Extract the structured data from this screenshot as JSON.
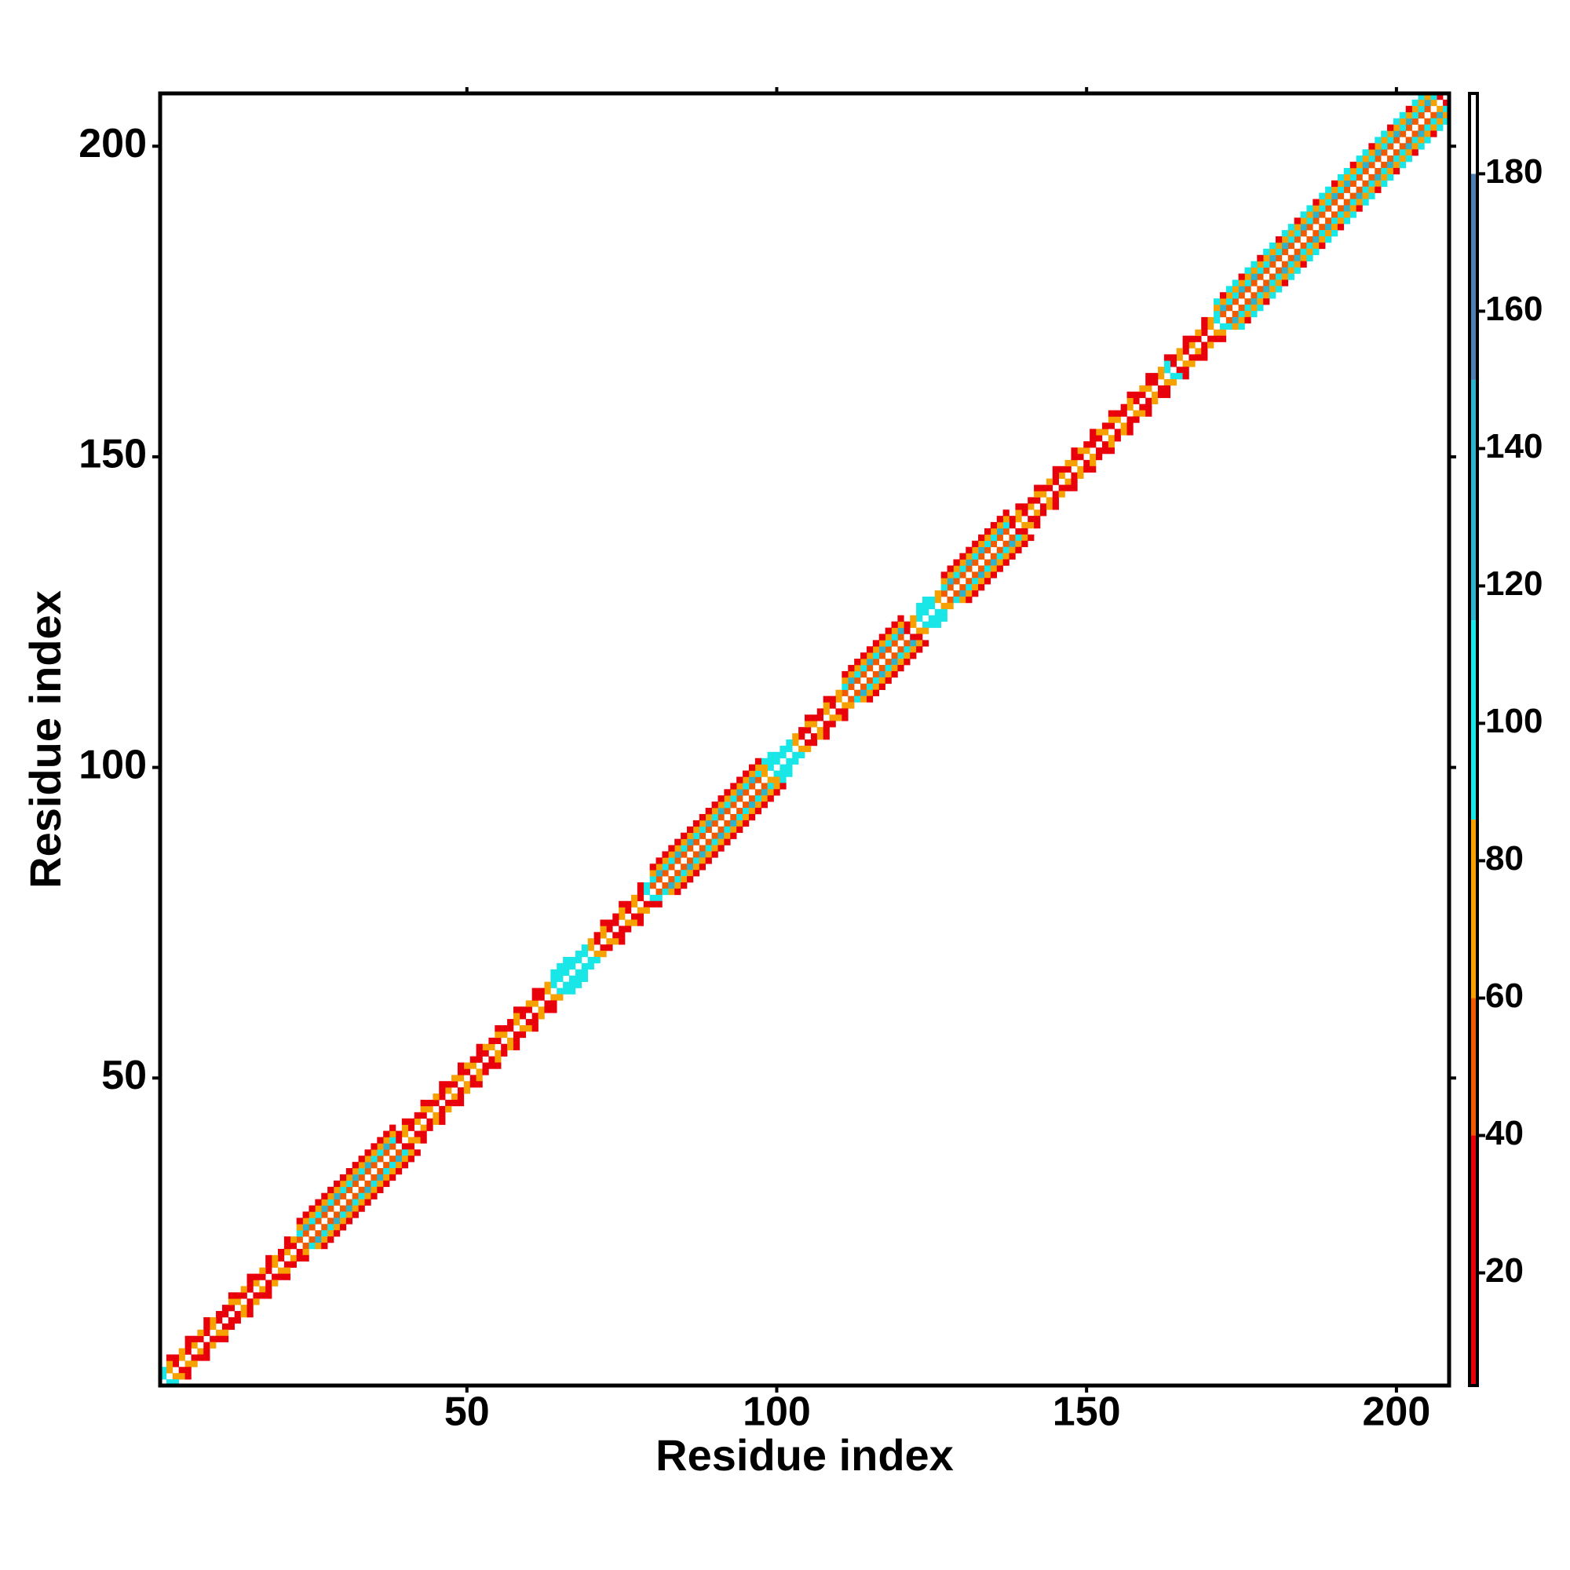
{
  "chart_data": {
    "type": "heatmap",
    "xlabel": "Residue index",
    "ylabel": "Residue index",
    "xlim": [
      0.5,
      208.5
    ],
    "ylim": [
      0.5,
      208.5
    ],
    "xticks": [
      50,
      100,
      150,
      200
    ],
    "yticks": [
      50,
      100,
      150,
      200
    ],
    "clim": [
      3.6,
      191.7
    ],
    "cticks": [
      20,
      40,
      60,
      80,
      100,
      120,
      140,
      160,
      180
    ],
    "colorscale": [
      {
        "max": 40,
        "color": "#e8000b"
      },
      {
        "max": 60,
        "color": "#f05a00"
      },
      {
        "max": 86,
        "color": "#f7a100"
      },
      {
        "max": 115,
        "color": "#19e6e6"
      },
      {
        "max": 150,
        "color": "#2fb3cc"
      },
      {
        "max": 180,
        "color": "#4f7fb0"
      },
      {
        "max": 191.7,
        "color": "#ffffff"
      }
    ],
    "diagonals": [
      {
        "offset": 1,
        "values": [
          95,
          65,
          25,
          70,
          30,
          65,
          20,
          25,
          70,
          30,
          20,
          25,
          65,
          15,
          30,
          70,
          25,
          20,
          65,
          30,
          70,
          25,
          60,
          55,
          50,
          55,
          60,
          55,
          50,
          55,
          60,
          55,
          50,
          55,
          60,
          55,
          50,
          55,
          25,
          65,
          30,
          70,
          20,
          65,
          25,
          30,
          70,
          15,
          65,
          25,
          70,
          30,
          20,
          65,
          25,
          70,
          30,
          65,
          20,
          25,
          70,
          30,
          65,
          100,
          95,
          100,
          105,
          95,
          100,
          65,
          25,
          70,
          30,
          20,
          65,
          25,
          70,
          30,
          95,
          55,
          60,
          50,
          55,
          60,
          55,
          50,
          55,
          60,
          55,
          50,
          55,
          60,
          55,
          50,
          55,
          60,
          55,
          65,
          100,
          105,
          100,
          95,
          65,
          25,
          30,
          70,
          20,
          65,
          25,
          70,
          55,
          60,
          50,
          55,
          60,
          55,
          50,
          55,
          60,
          55,
          25,
          65,
          100,
          95,
          100,
          65,
          55,
          60,
          50,
          55,
          60,
          55,
          50,
          55,
          60,
          55,
          50,
          25,
          65,
          30,
          70,
          20,
          65,
          25,
          30,
          70,
          15,
          65,
          25,
          70,
          30,
          20,
          65,
          25,
          70,
          30,
          65,
          20,
          25,
          70,
          30,
          65,
          100,
          25,
          70,
          30,
          65,
          20,
          25,
          70,
          100,
          55,
          60,
          50,
          55,
          60,
          55,
          50,
          55,
          60,
          55,
          50,
          55,
          60,
          55,
          50,
          55,
          60,
          55,
          50,
          55,
          60,
          55,
          50,
          55,
          60,
          55,
          50,
          55,
          60,
          55,
          50,
          55,
          60,
          55,
          65,
          30,
          null
        ]
      },
      {
        "offset": 2,
        "values": [
          100,
          70,
          20,
          65,
          25,
          15,
          70,
          20,
          65,
          25,
          15,
          70,
          20,
          65,
          25,
          15,
          70,
          20,
          65,
          25,
          15,
          70,
          100,
          130,
          100,
          95,
          130,
          100,
          130,
          100,
          95,
          130,
          100,
          130,
          100,
          95,
          130,
          100,
          20,
          65,
          25,
          15,
          70,
          20,
          65,
          25,
          15,
          70,
          20,
          65,
          25,
          15,
          70,
          20,
          65,
          25,
          15,
          70,
          20,
          65,
          25,
          15,
          70,
          95,
          100,
          105,
          95,
          100,
          95,
          70,
          20,
          65,
          25,
          15,
          70,
          20,
          65,
          25,
          95,
          100,
          130,
          100,
          95,
          130,
          100,
          130,
          100,
          95,
          130,
          100,
          130,
          100,
          95,
          130,
          100,
          130,
          100,
          70,
          100,
          105,
          100,
          95,
          70,
          20,
          65,
          25,
          15,
          70,
          20,
          65,
          100,
          130,
          100,
          95,
          130,
          100,
          130,
          100,
          95,
          130,
          25,
          70,
          100,
          105,
          95,
          70,
          100,
          130,
          100,
          95,
          130,
          100,
          130,
          100,
          95,
          130,
          100,
          20,
          65,
          25,
          15,
          70,
          20,
          65,
          25,
          15,
          70,
          20,
          65,
          25,
          15,
          70,
          20,
          65,
          25,
          15,
          70,
          20,
          65,
          25,
          15,
          70,
          95,
          20,
          65,
          25,
          15,
          70,
          20,
          65,
          100,
          130,
          100,
          95,
          130,
          100,
          130,
          100,
          95,
          130,
          100,
          130,
          100,
          95,
          130,
          100,
          130,
          100,
          95,
          130,
          100,
          130,
          100,
          95,
          130,
          100,
          130,
          100,
          95,
          130,
          100,
          130,
          100,
          95,
          130,
          100,
          null,
          null
        ]
      },
      {
        "offset": 3,
        "values": [
          null,
          15,
          null,
          null,
          20,
          null,
          null,
          15,
          null,
          null,
          null,
          20,
          null,
          null,
          15,
          null,
          null,
          20,
          null,
          null,
          15,
          null,
          70,
          65,
          75,
          70,
          65,
          75,
          70,
          65,
          75,
          70,
          65,
          75,
          70,
          65,
          75,
          70,
          null,
          20,
          null,
          null,
          15,
          null,
          null,
          20,
          null,
          null,
          15,
          null,
          null,
          20,
          null,
          null,
          15,
          null,
          null,
          20,
          null,
          null,
          15,
          null,
          null,
          100,
          95,
          100,
          null,
          null,
          null,
          null,
          null,
          20,
          null,
          null,
          15,
          null,
          null,
          20,
          null,
          70,
          65,
          75,
          70,
          65,
          75,
          70,
          65,
          75,
          70,
          65,
          75,
          70,
          65,
          75,
          70,
          65,
          75,
          100,
          105,
          null,
          null,
          null,
          null,
          null,
          20,
          null,
          null,
          15,
          null,
          null,
          70,
          65,
          75,
          70,
          65,
          75,
          70,
          65,
          75,
          70,
          null,
          null,
          100,
          95,
          null,
          null,
          70,
          65,
          75,
          70,
          65,
          75,
          70,
          65,
          75,
          70,
          65,
          null,
          20,
          null,
          null,
          15,
          null,
          null,
          20,
          null,
          null,
          15,
          null,
          null,
          20,
          null,
          null,
          15,
          null,
          null,
          20,
          null,
          null,
          15,
          null,
          null,
          20,
          null,
          null,
          15,
          null,
          null,
          20,
          null,
          70,
          65,
          75,
          70,
          65,
          75,
          70,
          65,
          75,
          70,
          65,
          75,
          70,
          65,
          75,
          70,
          65,
          75,
          70,
          65,
          75,
          70,
          65,
          75,
          70,
          65,
          75,
          70,
          65,
          75,
          70,
          65,
          75,
          70,
          65,
          null,
          null,
          null
        ]
      },
      {
        "offset": 4,
        "values": [
          null,
          null,
          null,
          null,
          null,
          null,
          null,
          null,
          null,
          null,
          null,
          null,
          null,
          null,
          null,
          null,
          null,
          null,
          null,
          null,
          null,
          null,
          25,
          20,
          30,
          25,
          20,
          30,
          25,
          20,
          30,
          25,
          20,
          30,
          25,
          20,
          30,
          25,
          null,
          null,
          null,
          null,
          null,
          null,
          null,
          null,
          null,
          null,
          null,
          null,
          null,
          null,
          null,
          null,
          null,
          null,
          null,
          null,
          null,
          null,
          null,
          null,
          null,
          null,
          null,
          null,
          null,
          null,
          null,
          null,
          null,
          null,
          null,
          null,
          null,
          null,
          null,
          null,
          null,
          25,
          20,
          30,
          25,
          20,
          30,
          25,
          20,
          30,
          25,
          20,
          30,
          25,
          20,
          30,
          25,
          20,
          30,
          null,
          null,
          null,
          null,
          null,
          null,
          null,
          null,
          null,
          null,
          null,
          null,
          null,
          25,
          20,
          30,
          25,
          20,
          30,
          25,
          20,
          30,
          25,
          null,
          null,
          null,
          null,
          null,
          null,
          25,
          20,
          30,
          25,
          20,
          30,
          25,
          20,
          30,
          25,
          20,
          null,
          null,
          null,
          null,
          null,
          null,
          null,
          null,
          null,
          null,
          null,
          null,
          null,
          null,
          null,
          null,
          null,
          null,
          null,
          null,
          null,
          null,
          null,
          null,
          null,
          null,
          null,
          null,
          null,
          null,
          null,
          null,
          null,
          95,
          20,
          100,
          95,
          20,
          100,
          95,
          20,
          100,
          95,
          20,
          100,
          95,
          20,
          100,
          95,
          20,
          100,
          95,
          20,
          100,
          95,
          20,
          100,
          95,
          20,
          100,
          95,
          20,
          100,
          95,
          20,
          100,
          95,
          null,
          null,
          null,
          null
        ]
      }
    ]
  }
}
